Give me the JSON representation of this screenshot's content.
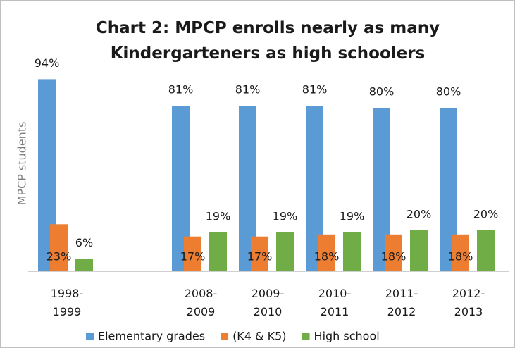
{
  "chart_data": {
    "type": "bar",
    "title": "Chart 2: MPCP enrolls nearly as many\nKindergarteners as high schoolers",
    "y_label": "MPCP students",
    "categories": [
      "1998-\n1999",
      null,
      "2008-\n2009",
      "2009-\n2010",
      "2010-\n2011",
      "2011-\n2012",
      "2012-\n2013"
    ],
    "series": [
      {
        "name": "Elementary grades",
        "color": "#5b9bd5",
        "values": [
          94,
          null,
          81,
          81,
          81,
          80,
          80
        ],
        "value_labels": [
          "94%",
          null,
          "81%",
          "81%",
          "81%",
          "80%",
          "80%"
        ]
      },
      {
        "name": "(K4 & K5)",
        "color": "#ed7d31",
        "values": [
          23,
          null,
          17,
          17,
          18,
          18,
          18
        ],
        "value_labels": [
          "23%",
          null,
          "17%",
          "17%",
          "18%",
          "18%",
          "18%"
        ]
      },
      {
        "name": "High school",
        "color": "#70ad47",
        "values": [
          6,
          null,
          19,
          19,
          19,
          20,
          20
        ],
        "value_labels": [
          "6%",
          null,
          "19%",
          "19%",
          "19%",
          "20%",
          "20%"
        ]
      }
    ],
    "legend": "bottom"
  }
}
